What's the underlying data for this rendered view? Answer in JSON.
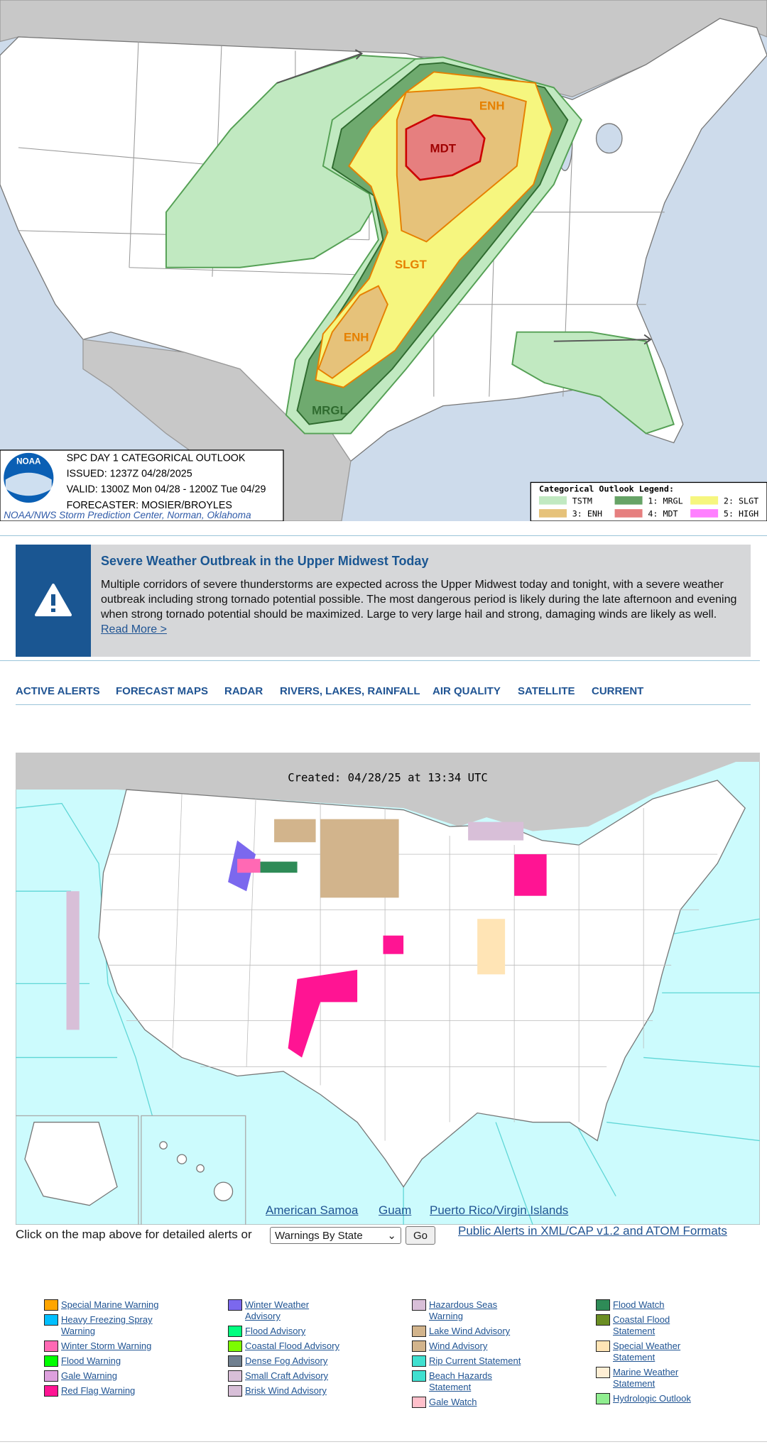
{
  "outlook_map": {
    "title": "SPC DAY 1 CATEGORICAL OUTLOOK",
    "issued": "ISSUED: 1237Z 04/28/2025",
    "valid": "VALID: 1300Z Mon 04/28 - 1200Z Tue 04/29",
    "forecaster": "FORECASTER: MOSIER/BROYLES",
    "logo": "NOAA",
    "credit": "NOAA/NWS Storm Prediction Center, Norman, Oklahoma",
    "area_labels": [
      "MDT",
      "ENH",
      "SLGT",
      "ENH",
      "MRGL"
    ],
    "legend": {
      "title": "Categorical Outlook Legend:",
      "items": [
        {
          "label": "TSTM",
          "color": "#c1e9c1"
        },
        {
          "label": "1: MRGL",
          "color": "#66a366"
        },
        {
          "label": "2: SLGT",
          "color": "#f6f67f"
        },
        {
          "label": "3: ENH",
          "color": "#e6c27a"
        },
        {
          "label": "4: MDT",
          "color": "#e67f7f"
        },
        {
          "label": "5: HIGH",
          "color": "#ff80ff"
        }
      ]
    }
  },
  "alert": {
    "title": "Severe Weather Outbreak in the Upper Midwest Today",
    "body": "Multiple corridors of severe thunderstorms are expected across the Upper Midwest today and tonight, with a severe weather outbreak including strong tornado potential possible. The most dangerous period is likely during the late afternoon and evening when strong tornado potential should be maximized. Large to very large hail and strong, damaging winds are likely as well.",
    "link": "Read More >"
  },
  "nav": [
    "ACTIVE ALERTS",
    "FORECAST MAPS",
    "RADAR",
    "RIVERS, LAKES, RAINFALL",
    "AIR QUALITY",
    "SATELLITE",
    "CURRENT"
  ],
  "alerts_map": {
    "created": "Created: 04/28/25 at 13:34 UTC",
    "territories": [
      "American Samoa",
      "Guam",
      "Puerto Rico/Virgin Islands"
    ]
  },
  "alerts_form": {
    "prompt": "Click on the map above for detailed alerts or",
    "select": "Warnings By State",
    "button": "Go",
    "feed_link": "Public Alerts in XML/CAP v1.2 and ATOM Formats"
  },
  "legend": {
    "columns": [
      [
        {
          "label": "Special Marine Warning",
          "color": "#ffa500"
        },
        {
          "label": "Heavy Freezing Spray Warning",
          "color": "#00bfff"
        },
        {
          "label": "Winter Storm Warning",
          "color": "#ff69b4"
        },
        {
          "label": "Flood Warning",
          "color": "#00ff00"
        },
        {
          "label": "Gale Warning",
          "color": "#dda0dd"
        },
        {
          "label": "Red Flag Warning",
          "color": "#ff1493"
        }
      ],
      [
        {
          "label": "Winter Weather Advisory",
          "color": "#7b68ee"
        },
        {
          "label": "Flood Advisory",
          "color": "#00ff7f"
        },
        {
          "label": "Coastal Flood Advisory",
          "color": "#7cfc00"
        },
        {
          "label": "Dense Fog Advisory",
          "color": "#708090"
        },
        {
          "label": "Small Craft Advisory",
          "color": "#d8bfd8"
        },
        {
          "label": "Brisk Wind Advisory",
          "color": "#d8bfd8"
        }
      ],
      [
        {
          "label": "Hazardous Seas Warning",
          "color": "#d8bfd8"
        },
        {
          "label": "Lake Wind Advisory",
          "color": "#d2b48c"
        },
        {
          "label": "Wind Advisory",
          "color": "#d2b48c"
        },
        {
          "label": "Rip Current Statement",
          "color": "#40e0d0"
        },
        {
          "label": "Beach Hazards Statement",
          "color": "#40e0d0"
        },
        {
          "label": "Gale Watch",
          "color": "#ffc0cb"
        }
      ],
      [
        {
          "label": "Flood Watch",
          "color": "#2e8b57"
        },
        {
          "label": "Coastal Flood Statement",
          "color": "#6b8e23"
        },
        {
          "label": "Special Weather Statement",
          "color": "#ffe4b5"
        },
        {
          "label": "Marine Weather Statement",
          "color": "#ffefd5"
        },
        {
          "label": "Hydrologic Outlook",
          "color": "#90ee90"
        }
      ]
    ]
  }
}
